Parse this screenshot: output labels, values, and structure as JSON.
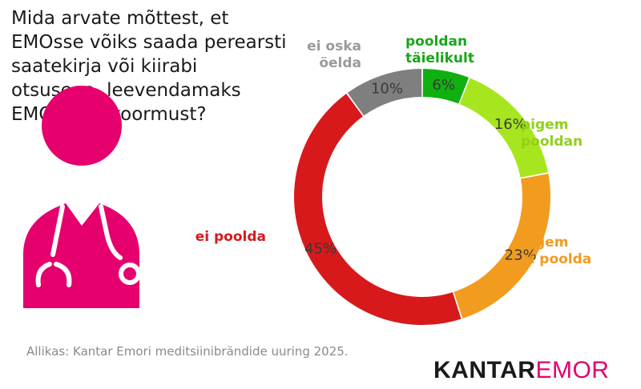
{
  "title_lines": [
    "Mida arvate mõttest, et",
    "EMOsse võiks saada perearsti",
    "saatekirja või kiirabi",
    "otsusega, leevendamaks",
    "EMOde ülekoormust?"
  ],
  "source": "Allikas: Kantar Emori meditsiinibrändide uuring 2025.",
  "brand": {
    "part1": "KANTAR",
    "part2": "EMOR"
  },
  "icon_color": "#e5006e",
  "chart_data": {
    "type": "donut",
    "title": "",
    "unit": "%",
    "segments": [
      {
        "label_lines": [
          "pooldan",
          "täielikult"
        ],
        "value": 6,
        "display": "6%",
        "color": "#10b010",
        "label_color": "#1aa51a"
      },
      {
        "label_lines": [
          "pigem",
          "pooldan"
        ],
        "value": 16,
        "display": "16%",
        "color": "#a7e61e",
        "label_color": "#8fd11a"
      },
      {
        "label_lines": [
          "pigem",
          "ei poolda"
        ],
        "value": 23,
        "display": "23%",
        "color": "#f29c1f",
        "label_color": "#f29c1f"
      },
      {
        "label_lines": [
          "ei poolda"
        ],
        "value": 45,
        "display": "45%",
        "color": "#d7191c",
        "label_color": "#d7191c"
      },
      {
        "label_lines": [
          "ei oska",
          "öelda"
        ],
        "value": 10,
        "display": "10%",
        "color": "#7f7f7f",
        "label_color": "#9a9a9a"
      }
    ]
  }
}
